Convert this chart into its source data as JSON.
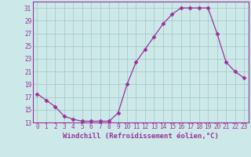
{
  "x": [
    0,
    1,
    2,
    3,
    4,
    5,
    6,
    7,
    8,
    9,
    10,
    11,
    12,
    13,
    14,
    15,
    16,
    17,
    18,
    19,
    20,
    21,
    22,
    23
  ],
  "y": [
    17.5,
    16.5,
    15.5,
    14.0,
    13.5,
    13.2,
    13.2,
    13.2,
    13.2,
    14.5,
    19.0,
    22.5,
    24.5,
    26.5,
    28.5,
    30.0,
    31.0,
    31.0,
    31.0,
    31.0,
    27.0,
    22.5,
    21.0,
    20.0
  ],
  "line_color": "#993399",
  "marker": "D",
  "marker_size": 2.5,
  "xlabel": "Windchill (Refroidissement éolien,°C)",
  "xlabel_fontsize": 6.5,
  "ylim": [
    13,
    32
  ],
  "xlim": [
    -0.5,
    23.5
  ],
  "yticks": [
    13,
    15,
    17,
    19,
    21,
    23,
    25,
    27,
    29,
    31
  ],
  "xticks": [
    0,
    1,
    2,
    3,
    4,
    5,
    6,
    7,
    8,
    9,
    10,
    11,
    12,
    13,
    14,
    15,
    16,
    17,
    18,
    19,
    20,
    21,
    22,
    23
  ],
  "bg_color": "#cce8e8",
  "grid_color": "#aacccc",
  "tick_color": "#993399",
  "axis_color": "#993399",
  "label_color": "#993399",
  "tick_fontsize": 5.5
}
